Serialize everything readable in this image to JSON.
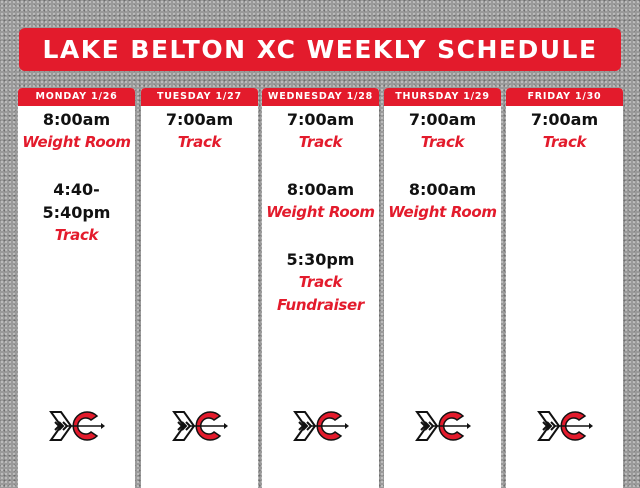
{
  "title": "LAKE BELTON XC WEEKLY SCHEDULE",
  "colors": {
    "accent": "#e31b2c",
    "background": "#9a9a9a"
  },
  "logo": "xc-arrow-logo",
  "days": [
    {
      "label": "MONDAY 1/26",
      "events": [
        {
          "time": "8:00am",
          "activity": [
            "Weight Room"
          ]
        },
        {
          "time": "4:40-\n5:40pm",
          "activity": [
            "Track"
          ]
        }
      ]
    },
    {
      "label": "TUESDAY 1/27",
      "events": [
        {
          "time": "7:00am",
          "activity": [
            "Track"
          ]
        }
      ]
    },
    {
      "label": "WEDNESDAY 1/28",
      "events": [
        {
          "time": "7:00am",
          "activity": [
            "Track"
          ]
        },
        {
          "time": "8:00am",
          "activity": [
            "Weight Room"
          ]
        },
        {
          "time": "5:30pm",
          "activity": [
            "Track",
            "Fundraiser"
          ]
        }
      ]
    },
    {
      "label": "THURSDAY 1/29",
      "events": [
        {
          "time": "7:00am",
          "activity": [
            "Track"
          ]
        },
        {
          "time": "8:00am",
          "activity": [
            "Weight Room"
          ]
        }
      ]
    },
    {
      "label": "FRIDAY 1/30",
      "events": [
        {
          "time": "7:00am",
          "activity": [
            "Track"
          ]
        }
      ]
    }
  ]
}
